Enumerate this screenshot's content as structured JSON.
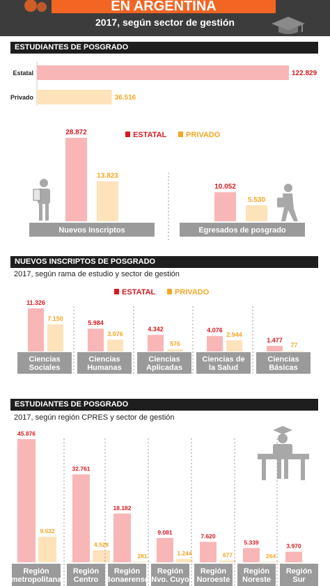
{
  "header": {
    "title": "EN ARGENTINA",
    "subtitle": "2017, según sector de gestión"
  },
  "colors": {
    "estatal": "#f9b6b6",
    "privado": "#fde2ba",
    "estatal_label": "#d71920",
    "privado_label": "#f5a623",
    "gray_label": "#9a9a9a",
    "section_bg": "#1e1e1e",
    "header_bg": "#3c3c3c",
    "banner": "#f26522",
    "icon": "#a8a8a8"
  },
  "sections": {
    "s1": {
      "title": "ESTUDIANTES DE POSGRADO"
    },
    "s2": {
      "title": "NUEVOS INSCRIPTOS DE POSGRADO",
      "subtitle": "2017, según rama de estudio y sector de gestión"
    },
    "s3": {
      "title": "ESTUDIANTES DE POSGRADO",
      "subtitle": "2017, según región CPRES y sector de gestión"
    }
  },
  "chart_data": [
    {
      "type": "bar",
      "orientation": "horizontal",
      "categories": [
        "Estatal",
        "Privado"
      ],
      "values": [
        122829,
        36516
      ],
      "value_labels": [
        "122.829",
        "36.516"
      ]
    },
    {
      "type": "bar",
      "categories": [
        "Nuevos Inscriptos",
        "Egresados de posgrado"
      ],
      "legend": [
        "ESTATAL",
        "PRIVADO"
      ],
      "legend_position": "top-right",
      "series": [
        {
          "name": "ESTATAL",
          "values": [
            28872,
            10052
          ],
          "labels": [
            "28.872",
            "10.052"
          ]
        },
        {
          "name": "PRIVADO",
          "values": [
            13823,
            5530
          ],
          "labels": [
            "13.823",
            "5.530"
          ]
        }
      ]
    },
    {
      "type": "bar",
      "categories": [
        [
          "Ciencias",
          "Sociales"
        ],
        [
          "Ciencias",
          "Humanas"
        ],
        [
          "Ciencias",
          "Aplicadas"
        ],
        [
          "Ciencias de",
          "la Salud"
        ],
        [
          "Ciencias",
          "Básicas"
        ]
      ],
      "legend": [
        "ESTATAL",
        "PRIVADO"
      ],
      "legend_position": "top-right",
      "series": [
        {
          "name": "ESTATAL",
          "values": [
            11326,
            5984,
            4342,
            4076,
            1477
          ],
          "labels": [
            "11.326",
            "5.984",
            "4.342",
            "4.076",
            "1.477"
          ]
        },
        {
          "name": "PRIVADO",
          "values": [
            7150,
            3076,
            576,
            2944,
            77
          ],
          "labels": [
            "7.150",
            "3.076",
            "576",
            "2.944",
            "77"
          ]
        }
      ]
    },
    {
      "type": "bar",
      "categories": [
        [
          "Región",
          "metropolitana"
        ],
        [
          "Región",
          "Centro"
        ],
        [
          "Región",
          "Bonaerense"
        ],
        [
          "Región",
          "Nvo. Cuyo"
        ],
        [
          "Región",
          "Noroeste"
        ],
        [
          "Región",
          "Noreste"
        ],
        [
          "Región",
          "Sur"
        ]
      ],
      "series": [
        {
          "name": "ESTATAL",
          "values": [
            45876,
            32761,
            18182,
            9081,
            7620,
            5339,
            3970
          ],
          "labels": [
            "45.876",
            "32.761",
            "18.182",
            "9.081",
            "7.620",
            "5.339",
            "3.970"
          ]
        },
        {
          "name": "PRIVADO",
          "values": [
            9532,
            4528,
            281,
            1244,
            677,
            264,
            0
          ],
          "labels": [
            "9.532",
            "4.528",
            "281",
            "1.244",
            "677",
            "264",
            ""
          ]
        }
      ]
    }
  ]
}
